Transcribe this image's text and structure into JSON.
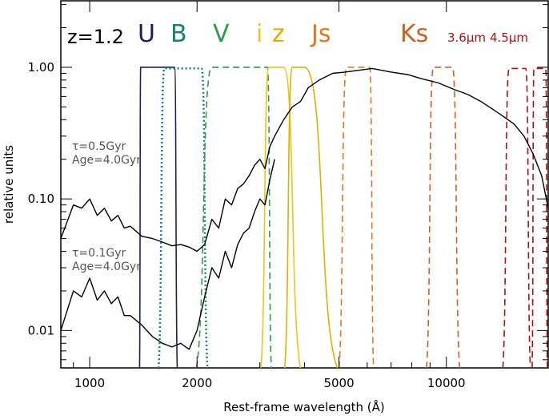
{
  "chart_data": {
    "type": "line",
    "xlabel": "Rest-frame wavelength (Å)",
    "ylabel": "relative units",
    "x_scale": "log",
    "y_scale": "log",
    "xlim": [
      830,
      19300
    ],
    "ylim": [
      0.0052,
      3.2
    ],
    "x_ticks": [
      1000,
      2000,
      5000,
      10000
    ],
    "x_tick_labels": [
      "1000",
      "2000",
      "5000",
      "10000"
    ],
    "y_ticks": [
      0.01,
      0.1,
      1.0
    ],
    "y_tick_labels": [
      "0.01",
      "0.10",
      "1.00"
    ],
    "annotations": {
      "redshift": "z=1.2",
      "model_old_tau": "τ=0.5Gyr",
      "model_old_age": "Age=4.0Gyr",
      "model_young_tau": "τ=0.1Gyr",
      "model_young_age": "Age=4.0Gyr"
    },
    "filters": [
      {
        "name": "U",
        "color": "#1b1f5e",
        "style": "solid",
        "edges": [
          1390,
          1730
        ],
        "outer": [
          1380,
          1760
        ],
        "peak": 1.0
      },
      {
        "name": "B",
        "color": "#11846a",
        "style": "dotted",
        "edges": [
          1620,
          2060
        ],
        "outer": [
          1560,
          2140
        ],
        "peak": 0.98
      },
      {
        "name": "V",
        "color": "#2e9a4f",
        "style": "dashed",
        "edges": [
          2200,
          3150
        ],
        "outer": [
          1990,
          3230
        ],
        "peak": 1.0
      },
      {
        "name": "i",
        "color": "#f0c419",
        "style": "solid",
        "edges": [
          3180,
          3500
        ],
        "outer": [
          3020,
          3900
        ],
        "peak": 1.0
      },
      {
        "name": "z",
        "color": "#e0b000",
        "style": "solid",
        "edges": [
          3700,
          4000
        ],
        "outer": [
          3520,
          4950
        ],
        "peak": 1.0
      },
      {
        "name": "Js",
        "color": "#e07820",
        "style": "dashed",
        "edges": [
          5250,
          6100
        ],
        "outer": [
          5000,
          6250
        ],
        "peak": 1.0
      },
      {
        "name": "Ks",
        "color": "#d06020",
        "style": "dashed",
        "edges": [
          9200,
          10400
        ],
        "outer": [
          8800,
          10900
        ],
        "peak": 1.0
      },
      {
        "name": "3.6μm",
        "color": "#b01010",
        "style": "dashed",
        "edges": [
          15000,
          16700
        ],
        "outer": [
          14400,
          17200
        ],
        "peak": 0.98
      },
      {
        "name": "4.5μm",
        "color": "#b01010",
        "style": "dashed",
        "edges": [
          17600,
          19000
        ],
        "outer": [
          17400,
          19200
        ],
        "peak": 0.98
      }
    ],
    "series": [
      {
        "name": "τ=0.5Gyr Age=4.0Gyr",
        "color": "#000000",
        "points": [
          [
            830,
            0.05
          ],
          [
            900,
            0.09
          ],
          [
            950,
            0.085
          ],
          [
            1000,
            0.1
          ],
          [
            1050,
            0.075
          ],
          [
            1100,
            0.085
          ],
          [
            1150,
            0.068
          ],
          [
            1200,
            0.075
          ],
          [
            1250,
            0.06
          ],
          [
            1300,
            0.062
          ],
          [
            1400,
            0.052
          ],
          [
            1500,
            0.05
          ],
          [
            1600,
            0.047
          ],
          [
            1700,
            0.044
          ],
          [
            1800,
            0.045
          ],
          [
            1900,
            0.043
          ],
          [
            2000,
            0.04
          ],
          [
            2100,
            0.045
          ],
          [
            2200,
            0.07
          ],
          [
            2300,
            0.06
          ],
          [
            2400,
            0.1
          ],
          [
            2500,
            0.09
          ],
          [
            2600,
            0.12
          ],
          [
            2700,
            0.13
          ],
          [
            2800,
            0.15
          ],
          [
            2900,
            0.18
          ],
          [
            3000,
            0.2
          ],
          [
            3100,
            0.17
          ],
          [
            3200,
            0.25
          ],
          [
            3300,
            0.3
          ],
          [
            3500,
            0.4
          ],
          [
            3700,
            0.5
          ],
          [
            3900,
            0.55
          ],
          [
            4100,
            0.7
          ],
          [
            4400,
            0.8
          ],
          [
            4800,
            0.9
          ],
          [
            5200,
            0.92
          ],
          [
            5700,
            0.95
          ],
          [
            6200,
            0.98
          ],
          [
            7000,
            0.92
          ],
          [
            7800,
            0.88
          ],
          [
            8500,
            0.82
          ],
          [
            9500,
            0.76
          ],
          [
            10500,
            0.68
          ],
          [
            11500,
            0.62
          ],
          [
            12500,
            0.55
          ],
          [
            13500,
            0.48
          ],
          [
            14500,
            0.42
          ],
          [
            15500,
            0.37
          ],
          [
            16500,
            0.3
          ],
          [
            17500,
            0.22
          ],
          [
            18500,
            0.15
          ],
          [
            19300,
            0.085
          ]
        ]
      },
      {
        "name": "τ=0.1Gyr Age=4.0Gyr",
        "color": "#000000",
        "points": [
          [
            830,
            0.01
          ],
          [
            900,
            0.02
          ],
          [
            950,
            0.018
          ],
          [
            1000,
            0.025
          ],
          [
            1050,
            0.017
          ],
          [
            1100,
            0.02
          ],
          [
            1150,
            0.016
          ],
          [
            1200,
            0.018
          ],
          [
            1250,
            0.013
          ],
          [
            1300,
            0.013
          ],
          [
            1400,
            0.011
          ],
          [
            1500,
            0.009
          ],
          [
            1600,
            0.008
          ],
          [
            1700,
            0.0075
          ],
          [
            1800,
            0.008
          ],
          [
            1900,
            0.0072
          ],
          [
            2000,
            0.01
          ],
          [
            2100,
            0.018
          ],
          [
            2200,
            0.03
          ],
          [
            2300,
            0.025
          ],
          [
            2400,
            0.04
          ],
          [
            2500,
            0.03
          ],
          [
            2600,
            0.045
          ],
          [
            2700,
            0.055
          ],
          [
            2800,
            0.06
          ],
          [
            2900,
            0.08
          ],
          [
            3000,
            0.1
          ],
          [
            3100,
            0.09
          ],
          [
            3200,
            0.14
          ],
          [
            3300,
            0.2
          ]
        ]
      }
    ]
  }
}
